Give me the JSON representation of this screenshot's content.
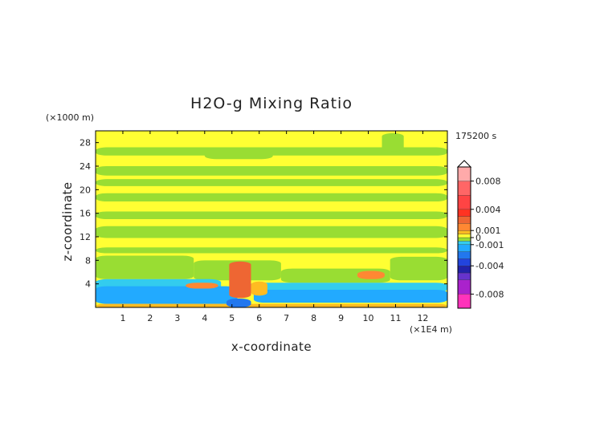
{
  "chart_data": {
    "type": "heatmap",
    "title": "H2O-g Mixing Ratio",
    "xlabel": "x-coordinate",
    "ylabel": "z-coordinate",
    "x_unit": "(×1E4 m)",
    "y_unit": "(×1000 m)",
    "time_label": "175200 s",
    "xlim": [
      0,
      12.9
    ],
    "ylim": [
      0,
      30
    ],
    "x_ticks": [
      "1",
      "2",
      "3",
      "4",
      "5",
      "6",
      "7",
      "8",
      "9",
      "10",
      "11",
      "12"
    ],
    "x_tick_values": [
      1,
      2,
      3,
      4,
      5,
      6,
      7,
      8,
      9,
      10,
      11,
      12
    ],
    "y_ticks": [
      "4",
      "8",
      "12",
      "16",
      "20",
      "24",
      "28"
    ],
    "y_tick_values": [
      4,
      8,
      12,
      16,
      20,
      24,
      28
    ],
    "colorbar": {
      "labels": [
        "0.008",
        "0.004",
        "0.001",
        "0",
        "-0.001",
        "-0.004",
        "-0.008"
      ],
      "label_values": [
        0.008,
        0.004,
        0.001,
        0,
        -0.001,
        -0.004,
        -0.008
      ],
      "min": -0.01,
      "max": 0.01,
      "extend": "max"
    },
    "background_value": 0.0003,
    "field_regions": [
      {
        "value": -0.0002,
        "x": [
          0,
          12.9
        ],
        "z": [
          25.8,
          27.2
        ]
      },
      {
        "value": -0.0002,
        "x": [
          10.5,
          11.3
        ],
        "z": [
          26.5,
          29.6
        ]
      },
      {
        "value": -0.0002,
        "x": [
          4.0,
          6.5
        ],
        "z": [
          25.2,
          26.8
        ]
      },
      {
        "value": -0.0002,
        "x": [
          0,
          12.9
        ],
        "z": [
          22.4,
          24.0
        ]
      },
      {
        "value": -0.0002,
        "x": [
          0,
          12.9
        ],
        "z": [
          20.6,
          21.8
        ]
      },
      {
        "value": -0.0002,
        "x": [
          0,
          12.9
        ],
        "z": [
          18.0,
          19.4
        ]
      },
      {
        "value": -0.0002,
        "x": [
          0,
          12.9
        ],
        "z": [
          15.0,
          16.3
        ]
      },
      {
        "value": -0.0002,
        "x": [
          0,
          12.9
        ],
        "z": [
          11.8,
          13.8
        ]
      },
      {
        "value": -0.0002,
        "x": [
          0,
          12.9
        ],
        "z": [
          9.2,
          10.2
        ]
      },
      {
        "value": -0.0002,
        "x": [
          0,
          3.6
        ],
        "z": [
          4.8,
          8.8
        ]
      },
      {
        "value": -0.0002,
        "x": [
          3.6,
          6.8
        ],
        "z": [
          4.6,
          8.0
        ]
      },
      {
        "value": -0.0002,
        "x": [
          6.8,
          10.8
        ],
        "z": [
          4.2,
          6.6
        ]
      },
      {
        "value": -0.0002,
        "x": [
          10.8,
          12.9
        ],
        "z": [
          4.6,
          8.6
        ]
      },
      {
        "value": -0.0006,
        "x": [
          0,
          4.6
        ],
        "z": [
          2.2,
          4.8
        ]
      },
      {
        "value": -0.0006,
        "x": [
          5.6,
          12.9
        ],
        "z": [
          2.6,
          4.2
        ]
      },
      {
        "value": -0.0012,
        "x": [
          0,
          5.2
        ],
        "z": [
          0.6,
          3.6
        ]
      },
      {
        "value": -0.0012,
        "x": [
          5.8,
          12.9
        ],
        "z": [
          0.8,
          3.0
        ]
      },
      {
        "value": -0.002,
        "x": [
          6.4,
          12.0
        ],
        "z": [
          1.4,
          2.4
        ]
      },
      {
        "value": 0.0008,
        "x": [
          0,
          12.9
        ],
        "z": [
          0,
          0.6
        ]
      },
      {
        "value": 0.0025,
        "x": [
          4.9,
          5.7
        ],
        "z": [
          1.6,
          7.8
        ]
      },
      {
        "value": 0.0015,
        "x": [
          3.3,
          4.5
        ],
        "z": [
          3.2,
          4.2
        ]
      },
      {
        "value": 0.0015,
        "x": [
          9.6,
          10.6
        ],
        "z": [
          4.8,
          6.2
        ]
      },
      {
        "value": 0.0008,
        "x": [
          5.7,
          6.3
        ],
        "z": [
          2.0,
          4.4
        ]
      },
      {
        "value": -0.0028,
        "x": [
          4.8,
          5.7
        ],
        "z": [
          0,
          1.5
        ]
      }
    ]
  }
}
